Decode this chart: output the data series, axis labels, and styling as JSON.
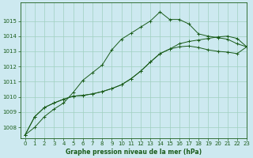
{
  "title": "Graphe pression niveau de la mer (hPa)",
  "background_color": "#cde9f0",
  "grid_color": "#a0d0c0",
  "line_color": "#1a5c1a",
  "xlim": [
    -0.5,
    23
  ],
  "ylim": [
    1007.3,
    1016.2
  ],
  "yticks": [
    1008,
    1009,
    1010,
    1011,
    1012,
    1013,
    1014,
    1015
  ],
  "xticks": [
    0,
    1,
    2,
    3,
    4,
    5,
    6,
    7,
    8,
    9,
    10,
    11,
    12,
    13,
    14,
    15,
    16,
    17,
    18,
    19,
    20,
    21,
    22,
    23
  ],
  "series1": {
    "x": [
      0,
      1,
      2,
      3,
      4,
      5,
      6,
      7,
      8,
      9,
      10,
      11,
      12,
      13,
      14,
      15,
      16,
      17,
      18,
      19,
      20,
      21,
      22,
      23
    ],
    "y": [
      1007.5,
      1008.0,
      1008.7,
      1009.2,
      1009.6,
      1010.3,
      1011.1,
      1011.6,
      1012.1,
      1013.1,
      1013.8,
      1014.2,
      1014.6,
      1015.0,
      1015.6,
      1015.1,
      1015.1,
      1014.8,
      1014.15,
      1014.0,
      1013.9,
      1013.8,
      1013.5,
      1013.3
    ]
  },
  "series2": {
    "x": [
      0,
      1,
      2,
      3,
      4,
      5,
      6,
      7,
      8,
      9,
      10,
      11,
      12,
      13,
      14,
      15,
      16,
      17,
      18,
      19,
      20,
      21,
      22,
      23
    ],
    "y": [
      1007.5,
      1008.7,
      1009.3,
      1009.6,
      1009.85,
      1010.05,
      1010.1,
      1010.2,
      1010.35,
      1010.55,
      1010.8,
      1011.2,
      1011.7,
      1012.3,
      1012.85,
      1013.15,
      1013.5,
      1013.65,
      1013.75,
      1013.85,
      1013.95,
      1014.0,
      1013.85,
      1013.3
    ]
  },
  "series3": {
    "x": [
      0,
      1,
      2,
      3,
      4,
      5,
      6,
      7,
      8,
      9,
      10,
      11,
      12,
      13,
      14,
      15,
      16,
      17,
      18,
      19,
      20,
      21,
      22,
      23
    ],
    "y": [
      1007.5,
      1008.7,
      1009.3,
      1009.6,
      1009.85,
      1010.05,
      1010.1,
      1010.2,
      1010.35,
      1010.55,
      1010.8,
      1011.2,
      1011.7,
      1012.3,
      1012.85,
      1013.15,
      1013.3,
      1013.35,
      1013.25,
      1013.1,
      1013.0,
      1012.95,
      1012.85,
      1013.3
    ]
  }
}
